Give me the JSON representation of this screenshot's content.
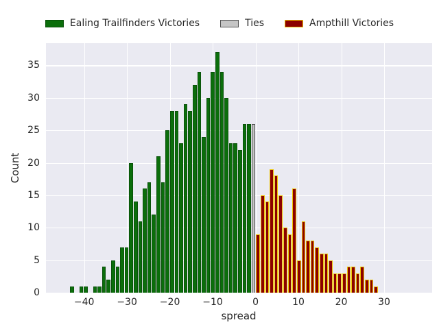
{
  "chart_data": {
    "type": "bar",
    "subtype": "histogram",
    "title": "",
    "xlabel": "spread",
    "ylabel": "Count",
    "x_tick_values": [
      -40,
      -30,
      -20,
      -10,
      0,
      10,
      20,
      30
    ],
    "x_tick_labels": [
      "−40",
      "−30",
      "−20",
      "−10",
      "0",
      "10",
      "20",
      "30"
    ],
    "y_tick_values": [
      0,
      5,
      10,
      15,
      20,
      25,
      30,
      35
    ],
    "y_tick_labels": [
      "0",
      "5",
      "10",
      "15",
      "20",
      "25",
      "30",
      "35"
    ],
    "xlim": [
      -48.9,
      41.2
    ],
    "ylim": [
      0,
      38.42
    ],
    "grid": true,
    "plot_background": "#eaeaf2",
    "gridline_color": "#ffffff",
    "legend_position": "top-center",
    "bin_width": 1.058,
    "series": [
      {
        "name": "Ealing Trailfinders Victories",
        "fill": "#0b6e0b",
        "edge": "#0a520a",
        "first_bin_left": -43.3,
        "values": [
          1,
          0,
          1,
          1,
          0,
          1,
          1,
          4,
          2,
          5,
          4,
          7,
          7,
          20,
          14,
          11,
          16,
          17,
          12,
          21,
          17,
          25,
          28,
          28,
          23,
          29,
          28,
          32,
          34,
          24,
          30,
          34,
          37,
          34,
          30,
          23,
          23,
          22,
          26,
          26
        ]
      },
      {
        "name": "Ties",
        "fill": "#c5c5c5",
        "edge": "#4f4f4f",
        "first_bin_left": -1.0,
        "values": [
          26
        ]
      },
      {
        "name": "Ampthill Victories",
        "fill": "#8b0000",
        "edge": "#edc500",
        "first_bin_left": 0.06,
        "values": [
          9,
          15,
          14,
          19,
          18,
          15,
          10,
          9,
          16,
          5,
          11,
          8,
          8,
          7,
          6,
          6,
          5,
          3,
          3,
          3,
          4,
          4,
          3,
          4,
          2,
          2,
          1
        ]
      }
    ]
  }
}
